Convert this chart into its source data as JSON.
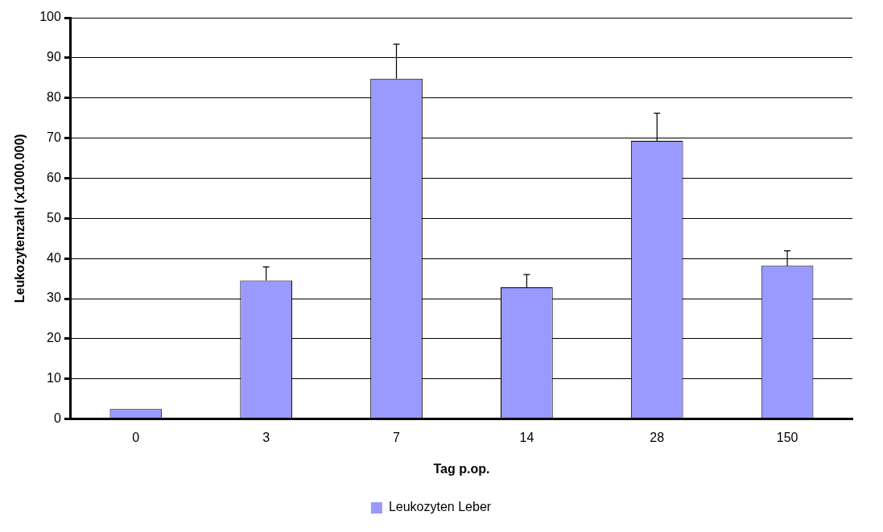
{
  "chart_data": {
    "type": "bar",
    "xlabel": "Tag p.op.",
    "ylabel": "Leukozytenzahl (x1000.000)",
    "categories": [
      "0",
      "3",
      "7",
      "14",
      "28",
      "150"
    ],
    "series": [
      {
        "name": "Leukozyten Leber",
        "color": "#9999ff",
        "values": [
          2.5,
          34.5,
          84.8,
          32.8,
          69.3,
          38.2
        ],
        "errors": [
          null,
          3.4,
          8.6,
          3.2,
          6.9,
          3.7
        ]
      }
    ],
    "ylim": [
      0,
      100
    ],
    "yticks": [
      0,
      10,
      20,
      30,
      40,
      50,
      60,
      70,
      80,
      90,
      100
    ],
    "grid": "y",
    "legend": "bottom"
  }
}
